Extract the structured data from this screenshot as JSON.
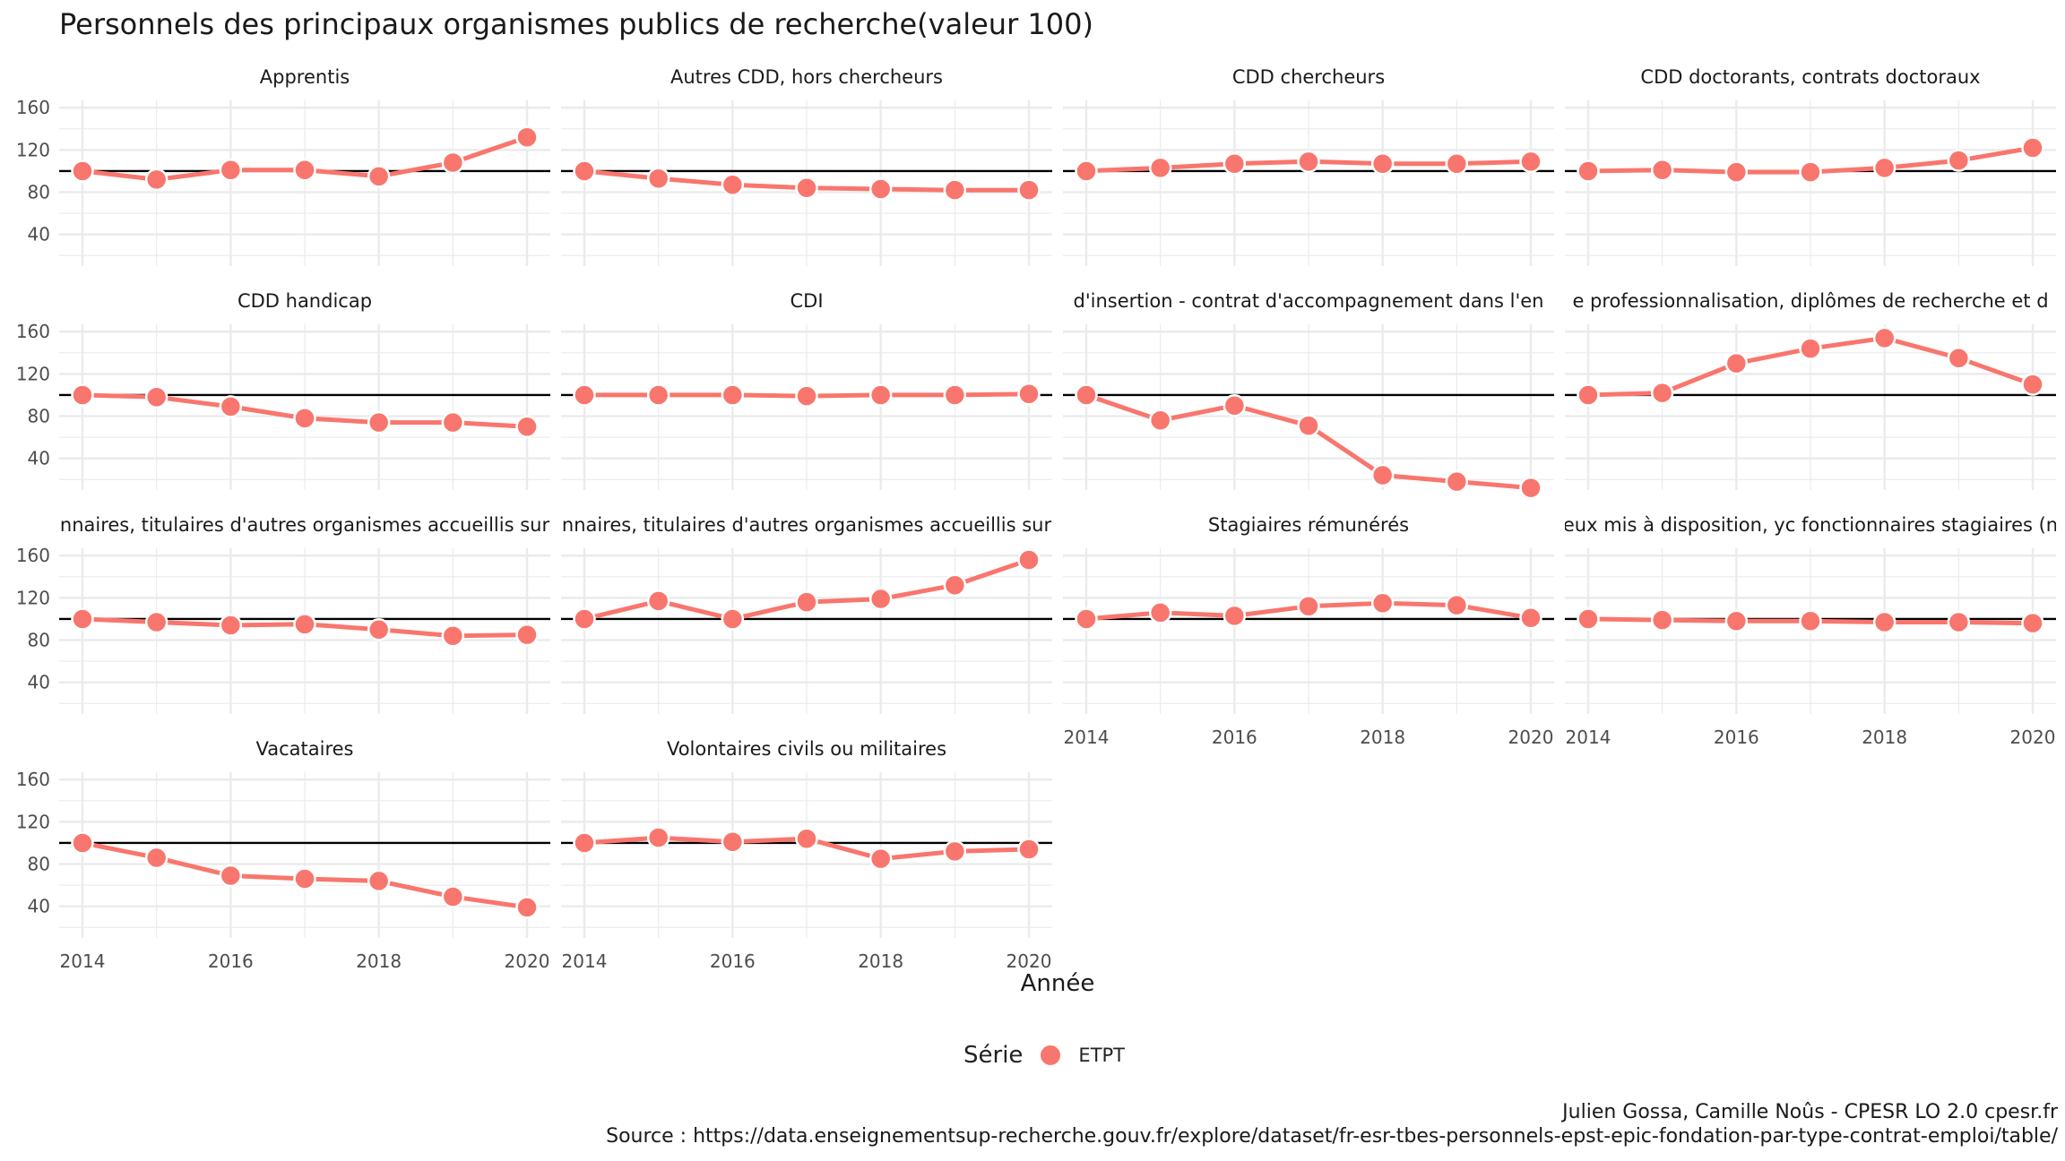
{
  "title": "Personnels des principaux organismes publics de recherche(valeur 100)",
  "caption": {
    "line1": "Julien Gossa, Camille Noûs - CPESR LO 2.0 cpesr.fr",
    "line2": "Source : https://data.enseignementsup-recherche.gouv.fr/explore/dataset/fr-esr-tbes-personnels-epst-epic-fondation-par-type-contrat-emploi/table/"
  },
  "colors": {
    "series": "#F8766D",
    "grid": "#EBEBEB",
    "reference": "#000000",
    "text": "#4D4D4D"
  },
  "chart_data": {
    "type": "line",
    "facet_layout": "4 columns, shared axes",
    "xlabel": "Année",
    "ylabel": "",
    "x": [
      2014,
      2015,
      2016,
      2017,
      2018,
      2019,
      2020
    ],
    "x_ticks": [
      2014,
      2016,
      2018,
      2020
    ],
    "ylim": [
      10,
      167
    ],
    "y_ticks": [
      40,
      80,
      120,
      160
    ],
    "reference_line": 100,
    "grid": true,
    "legend": {
      "title": "Série",
      "entries": [
        "ETPT"
      ],
      "placement": "bottom"
    },
    "panels": [
      {
        "label": "Apprentis",
        "values": [
          100,
          92,
          101,
          101,
          95,
          108,
          132
        ]
      },
      {
        "label": "Autres CDD, hors chercheurs",
        "values": [
          100,
          93,
          87,
          84,
          83,
          82,
          82
        ]
      },
      {
        "label": "CDD chercheurs",
        "values": [
          100,
          103,
          107,
          109,
          107,
          107,
          109
        ]
      },
      {
        "label": "CDD doctorants, contrats doctoraux",
        "values": [
          100,
          101,
          99,
          99,
          103,
          110,
          122
        ]
      },
      {
        "label": "CDD handicap",
        "values": [
          100,
          98,
          89,
          78,
          74,
          74,
          70
        ]
      },
      {
        "label": "CDI",
        "values": [
          100,
          100,
          100,
          99,
          100,
          100,
          101
        ]
      },
      {
        "label": "d'insertion - contrat d'accompagnement dans l'en",
        "values": [
          100,
          76,
          90,
          71,
          24,
          18,
          12
        ]
      },
      {
        "label": "e professionnalisation, diplômes de recherche et d",
        "values": [
          100,
          102,
          130,
          144,
          154,
          135,
          110
        ]
      },
      {
        "label": "nnaires, titulaires d'autres organismes accueillis sur",
        "values": [
          100,
          97,
          94,
          95,
          90,
          84,
          85
        ]
      },
      {
        "label": "nnaires, titulaires d'autres organismes accueillis sur",
        "values": [
          100,
          117,
          100,
          116,
          119,
          132,
          156
        ]
      },
      {
        "label": "Stagiaires rémunérés",
        "values": [
          100,
          106,
          103,
          112,
          115,
          113,
          101
        ]
      },
      {
        "label": "eux mis à disposition, yc fonctionnaires stagiaires (n",
        "values": [
          100,
          99,
          98,
          98,
          97,
          97,
          96
        ]
      },
      {
        "label": "Vacataires",
        "values": [
          100,
          86,
          69,
          66,
          64,
          49,
          39
        ]
      },
      {
        "label": "Volontaires civils ou militaires",
        "values": [
          100,
          105,
          101,
          104,
          85,
          92,
          94
        ]
      }
    ]
  }
}
